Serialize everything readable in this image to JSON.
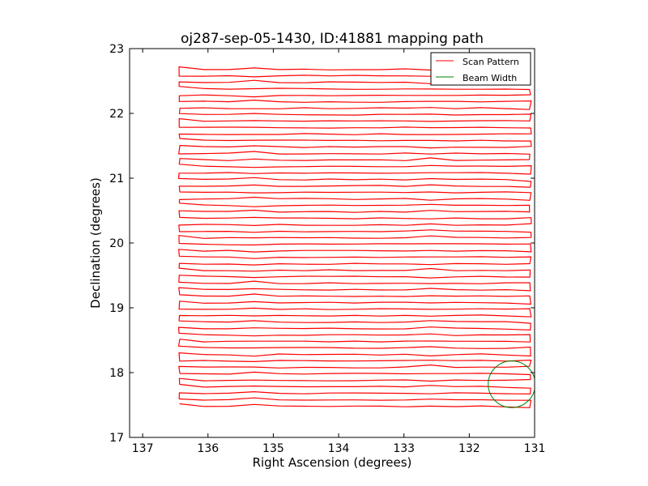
{
  "chart_data": {
    "type": "line",
    "title": "oj287-sep-05-1430, ID:41881 mapping path",
    "xlabel": "Right Ascension (degrees)",
    "ylabel": "Declination (degrees)",
    "xlim": [
      137.2,
      131.0
    ],
    "ylim": [
      17,
      23
    ],
    "x_inverted": true,
    "xticks": [
      137,
      136,
      135,
      134,
      133,
      132,
      131
    ],
    "yticks": [
      17,
      18,
      19,
      20,
      21,
      22,
      23
    ],
    "xtick_labels": [
      "137",
      "136",
      "135",
      "134",
      "133",
      "132",
      "131"
    ],
    "ytick_labels": [
      "17",
      "18",
      "19",
      "20",
      "21",
      "22",
      "23"
    ],
    "grid": false,
    "legend_position": "top-right",
    "series": [
      {
        "name": "Scan Pattern",
        "color": "#ff0000",
        "ra_min": 131.05,
        "ra_max": 136.45,
        "dec_start": 17.48,
        "dec_end": 22.68,
        "dec_step": 0.1
      },
      {
        "name": "Beam Width",
        "color": "#008000",
        "shape": "circle",
        "center": [
          131.35,
          17.82
        ],
        "radius_deg": 0.36
      }
    ]
  }
}
